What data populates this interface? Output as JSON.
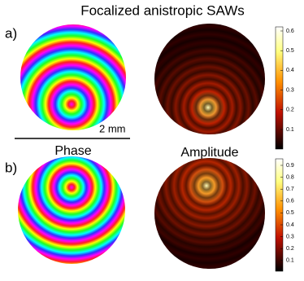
{
  "title": "Focalized anistropic SAWs",
  "panels": [
    {
      "label": "a)"
    },
    {
      "label": "b)"
    }
  ],
  "scale_bar": "2 mm",
  "column_labels": [
    "Phase",
    "Amplitude"
  ],
  "colorbars": [
    {
      "ticks": [
        0.6,
        0.5,
        0.4,
        0.3,
        0.2,
        0.1
      ]
    },
    {
      "ticks": [
        0.9,
        0.8,
        0.7,
        0.6,
        0.5,
        0.4,
        0.3,
        0.2,
        0.1
      ]
    }
  ]
}
